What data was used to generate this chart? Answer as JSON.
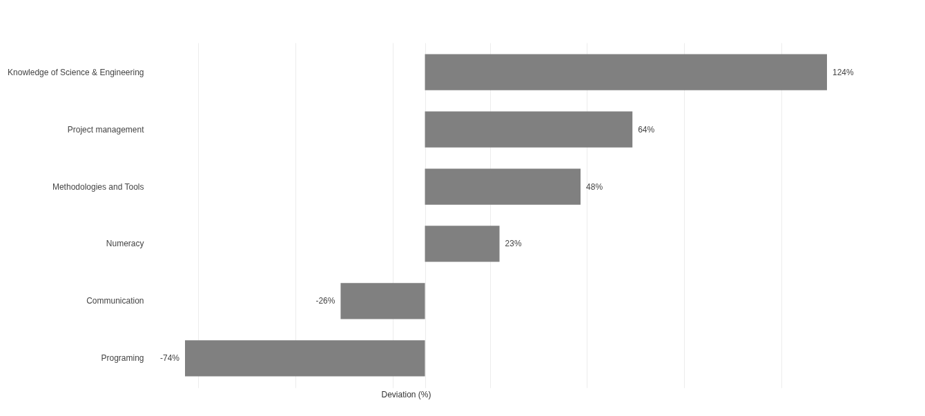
{
  "chart_data": {
    "type": "bar",
    "orientation": "horizontal",
    "xlabel": "Deviation (%)",
    "categories": [
      "Knowledge of Science & Engineering",
      "Project management",
      "Methodologies and Tools",
      "Numeracy",
      "Communication",
      "Programing"
    ],
    "values": [
      124,
      64,
      48,
      23,
      -26,
      -74
    ],
    "value_labels": [
      "124%",
      "64%",
      "48%",
      "23%",
      "-26%",
      "-74%"
    ],
    "color": "#808080",
    "xticks": [
      {
        "value": -70,
        "label": null
      },
      {
        "value": -40,
        "label": null
      },
      {
        "value": -10,
        "label": null
      },
      {
        "value": 0,
        "label": null
      },
      {
        "value": 20,
        "label": null
      },
      {
        "value": 50,
        "label": null
      },
      {
        "value": 80,
        "label": null
      },
      {
        "value": 110,
        "label": null
      }
    ],
    "grid": "x",
    "tick_labels": "y"
  }
}
